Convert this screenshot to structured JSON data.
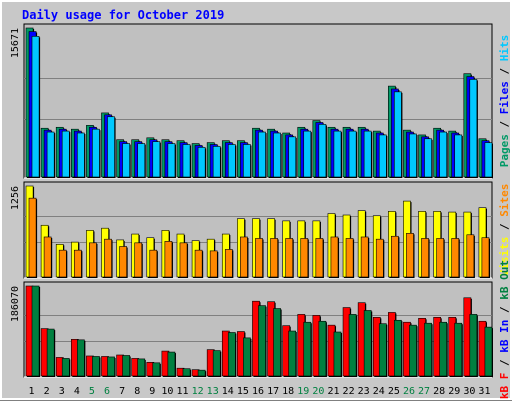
{
  "title": "Daily usage for October 2019",
  "colors": {
    "pages": "#00c8ff",
    "files": "#0000ff",
    "hits": "#009966",
    "visits": "#ffff00",
    "sites": "#ff8800",
    "kb_in": "#0000ff",
    "kb_out": "#008040",
    "kb_f": "#ff0000",
    "title": "#0000ff",
    "weekend": "#008040",
    "weekday": "#000000"
  },
  "chart_data": [
    {
      "type": "bar",
      "name": "hits-files-pages",
      "y_max_label": "15671",
      "legend": [
        "Pages",
        "Files",
        "Hits"
      ],
      "categories": [
        "1",
        "2",
        "3",
        "4",
        "5",
        "6",
        "7",
        "8",
        "9",
        "10",
        "11",
        "12",
        "13",
        "14",
        "15",
        "16",
        "17",
        "18",
        "19",
        "20",
        "21",
        "22",
        "23",
        "24",
        "25",
        "26",
        "27",
        "28",
        "29",
        "30",
        "31"
      ],
      "weekend_days": [
        "5",
        "6",
        "12",
        "13",
        "19",
        "20",
        "26",
        "27"
      ],
      "series": [
        {
          "name": "Hits",
          "values": [
            15671,
            5200,
            5300,
            5100,
            5500,
            6800,
            4000,
            4000,
            4200,
            4000,
            3900,
            3600,
            3700,
            3900,
            3900,
            5200,
            5100,
            4700,
            5300,
            6000,
            5300,
            5300,
            5300,
            4900,
            9600,
            5000,
            4500,
            5200,
            4900,
            10900,
            4100
          ]
        },
        {
          "name": "Files",
          "values": [
            15300,
            5000,
            5100,
            4900,
            5300,
            6600,
            3800,
            3800,
            4000,
            3800,
            3700,
            3400,
            3500,
            3700,
            3700,
            5000,
            4900,
            4500,
            5100,
            5800,
            5100,
            5100,
            5100,
            4700,
            9300,
            4800,
            4300,
            5000,
            4700,
            10600,
            3900
          ]
        },
        {
          "name": "Pages",
          "values": [
            14800,
            4800,
            4900,
            4700,
            5100,
            6400,
            3600,
            3600,
            3800,
            3600,
            3500,
            3200,
            3300,
            3500,
            3500,
            4800,
            4700,
            4300,
            4900,
            5600,
            4900,
            4900,
            4900,
            4500,
            9000,
            4600,
            4100,
            4800,
            4500,
            10300,
            3700
          ]
        }
      ]
    },
    {
      "type": "bar",
      "name": "visits-sites",
      "y_max_label": "1256",
      "legend": [
        "Visits",
        "Sites"
      ],
      "categories": [
        "1",
        "2",
        "3",
        "4",
        "5",
        "6",
        "7",
        "8",
        "9",
        "10",
        "11",
        "12",
        "13",
        "14",
        "15",
        "16",
        "17",
        "18",
        "19",
        "20",
        "21",
        "22",
        "23",
        "24",
        "25",
        "26",
        "27",
        "28",
        "29",
        "30",
        "31"
      ],
      "series": [
        {
          "name": "Visits",
          "values": [
            1256,
            720,
            460,
            490,
            650,
            680,
            520,
            600,
            550,
            650,
            600,
            510,
            530,
            600,
            810,
            810,
            810,
            780,
            780,
            780,
            880,
            860,
            920,
            850,
            910,
            1050,
            910,
            910,
            900,
            900,
            960
          ]
        },
        {
          "name": "Sites",
          "values": [
            1090,
            560,
            380,
            380,
            480,
            530,
            430,
            480,
            380,
            500,
            480,
            380,
            370,
            390,
            560,
            540,
            540,
            540,
            540,
            540,
            560,
            540,
            560,
            530,
            570,
            610,
            540,
            540,
            540,
            590,
            550
          ]
        }
      ]
    },
    {
      "type": "bar",
      "name": "kbf-kbin-kbout",
      "y_max_label": "186070",
      "legend": [
        "kB F",
        "kB In",
        "kB Out"
      ],
      "categories": [
        "1",
        "2",
        "3",
        "4",
        "5",
        "6",
        "7",
        "8",
        "9",
        "10",
        "11",
        "12",
        "13",
        "14",
        "15",
        "16",
        "17",
        "18",
        "19",
        "20",
        "21",
        "22",
        "23",
        "24",
        "25",
        "26",
        "27",
        "28",
        "29",
        "30",
        "31"
      ],
      "series": [
        {
          "name": "kB F",
          "values": [
            186070,
            99000,
            40000,
            77000,
            43000,
            42000,
            45000,
            38000,
            30000,
            53000,
            18000,
            15000,
            56000,
            94000,
            93000,
            155000,
            154000,
            105000,
            128000,
            126000,
            106000,
            142000,
            152000,
            122000,
            132000,
            112000,
            120000,
            122000,
            122000,
            162000,
            114000
          ]
        },
        {
          "name": "kB In",
          "values": [
            0,
            0,
            0,
            0,
            0,
            0,
            0,
            0,
            0,
            0,
            0,
            0,
            0,
            0,
            0,
            0,
            0,
            0,
            0,
            0,
            0,
            0,
            0,
            0,
            0,
            0,
            0,
            0,
            0,
            0,
            0
          ]
        },
        {
          "name": "kB Out",
          "values": [
            186070,
            98000,
            38000,
            76000,
            42000,
            41000,
            44000,
            37000,
            29000,
            51000,
            17000,
            14000,
            54000,
            91000,
            80000,
            146000,
            140000,
            94000,
            112000,
            114000,
            92000,
            128000,
            136000,
            109000,
            116000,
            106000,
            110000,
            112000,
            110000,
            128000,
            102000
          ]
        }
      ]
    }
  ]
}
